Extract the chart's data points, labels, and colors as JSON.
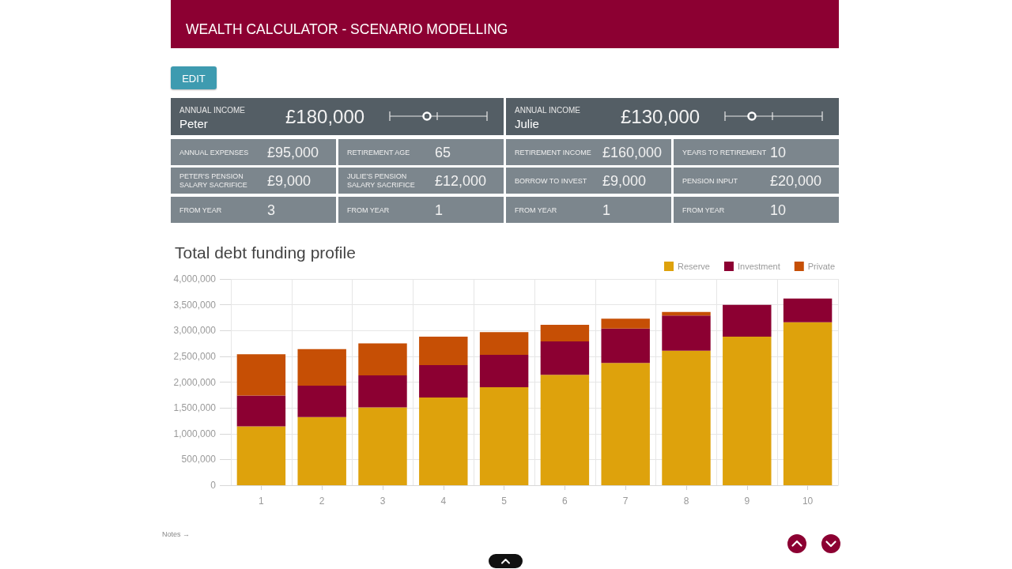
{
  "chart_data": [
    {
      "type": "other",
      "title": "WEALTH CALCULATOR - SCENARIO MODELLING",
      "annotations": [
        "EDIT",
        "ANNUAL INCOME",
        "Peter",
        "£180,000",
        "ANNUAL INCOME",
        "Julie",
        "£130,000",
        "ANNUAL EXPENSES",
        "£95,000",
        "RETIREMENT AGE",
        "65",
        "RETIREMENT INCOME",
        "£160,000",
        "YEARS TO RETIREMENT",
        "10",
        "PETER'S PENSION SALARY SACRIFICE",
        "£9,000",
        "JULIE'S PENSION SALARY SACRIFICE",
        "£12,000",
        "BORROW TO INVEST",
        "£9,000",
        "PENSION INPUT",
        "£20,000",
        "FROM YEAR",
        "3",
        "FROM YEAR",
        "1",
        "FROM YEAR",
        "1",
        "FROM YEAR",
        "10"
      ]
    },
    {
      "type": "bar",
      "title": "Total debt funding profile",
      "categories": [
        "1",
        "2",
        "3",
        "4",
        "5",
        "6",
        "7",
        "8",
        "9",
        "10"
      ],
      "series": [
        {
          "name": "Reserve",
          "color": "#dea20c",
          "values": [
            1140000,
            1320000,
            1510000,
            1700000,
            1900000,
            2140000,
            2370000,
            2610000,
            2880000,
            3160000
          ]
        },
        {
          "name": "Investment",
          "color": "#8c0032",
          "values": [
            600000,
            610000,
            620000,
            630000,
            630000,
            650000,
            670000,
            680000,
            620000,
            460000
          ]
        },
        {
          "name": "Private",
          "color": "#c64f05",
          "values": [
            800000,
            710000,
            620000,
            550000,
            440000,
            320000,
            190000,
            70000,
            null,
            null
          ]
        }
      ],
      "stacked": true,
      "ylim": [
        0,
        4000000
      ],
      "yticks": [
        0,
        {
          "value": 500000,
          "label": "500,000"
        },
        {
          "value": 1000000,
          "label": "1,000,000"
        },
        {
          "value": 1500000,
          "label": "1,500,000"
        },
        {
          "value": 2000000,
          "label": "2,000,000"
        },
        {
          "value": 2500000,
          "label": "2,500,000"
        },
        {
          "value": 3000000,
          "label": "3,000,000"
        },
        {
          "value": 3500000,
          "label": "3,500,000"
        },
        {
          "value": 4000000,
          "label": "4,000,000"
        }
      ],
      "grid": true,
      "legend": "top right",
      "annotations": [
        "Notes →"
      ]
    }
  ]
}
